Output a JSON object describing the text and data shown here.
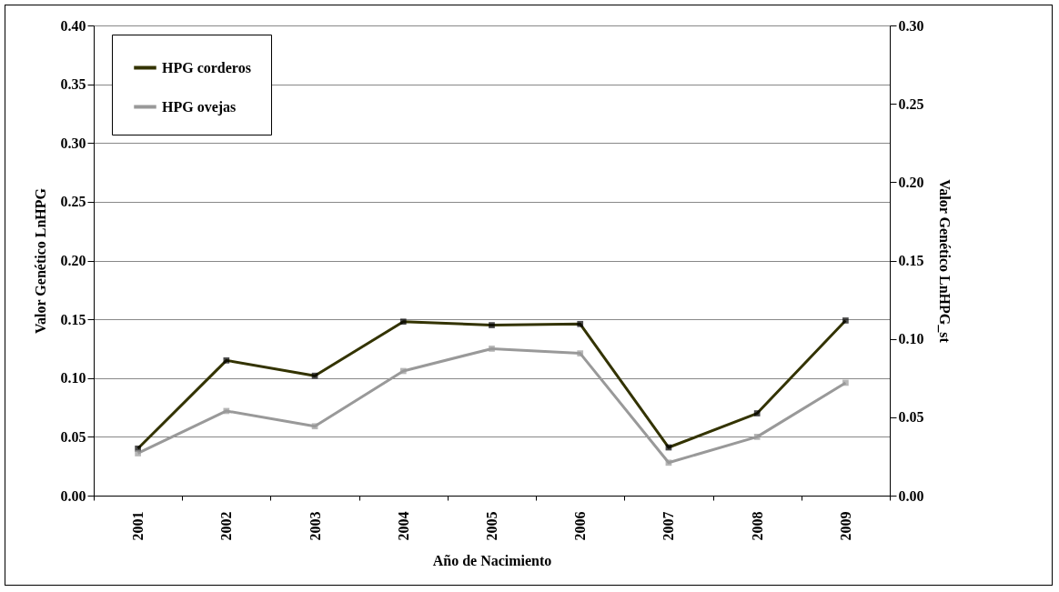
{
  "chart_data": {
    "type": "line",
    "xlabel": "Año de Nacimiento",
    "ylabel": "Valor Genético LnHPG",
    "y2label": "Valor Genético LnHPG_st",
    "categories": [
      "2001",
      "2002",
      "2003",
      "2004",
      "2005",
      "2006",
      "2007",
      "2008",
      "2009"
    ],
    "series": [
      {
        "name": "HPG corderos",
        "color": "#333300",
        "values": [
          0.04,
          0.115,
          0.102,
          0.148,
          0.145,
          0.146,
          0.041,
          0.07,
          0.149
        ]
      },
      {
        "name": "HPG ovejas",
        "color": "#999999",
        "values": [
          0.036,
          0.072,
          0.059,
          0.106,
          0.125,
          0.121,
          0.028,
          0.05,
          0.096
        ]
      }
    ],
    "ylim": [
      0,
      0.4
    ],
    "yticks": [
      {
        "value": 0,
        "label": "0.00"
      },
      {
        "value": 0.05,
        "label": "0.05"
      },
      {
        "value": 0.1,
        "label": "0.10"
      },
      {
        "value": 0.15,
        "label": "0.15"
      },
      {
        "value": 0.2,
        "label": "0.20"
      },
      {
        "value": 0.25,
        "label": "0.25"
      },
      {
        "value": 0.3,
        "label": "0.30"
      },
      {
        "value": 0.35,
        "label": "0.35"
      },
      {
        "value": 0.4,
        "label": "0.40"
      }
    ],
    "y2lim": [
      0,
      0.3
    ],
    "y2ticks": [
      {
        "value": 0,
        "label": "0.00"
      },
      {
        "value": 0.05,
        "label": "0.05"
      },
      {
        "value": 0.1,
        "label": "0.10"
      },
      {
        "value": 0.15,
        "label": "0.15"
      },
      {
        "value": 0.2,
        "label": "0.20"
      },
      {
        "value": 0.25,
        "label": "0.25"
      },
      {
        "value": 0.3,
        "label": "0.30"
      }
    ],
    "grid": "y",
    "legend": "top left",
    "marker": "square",
    "line_style": "solid"
  }
}
